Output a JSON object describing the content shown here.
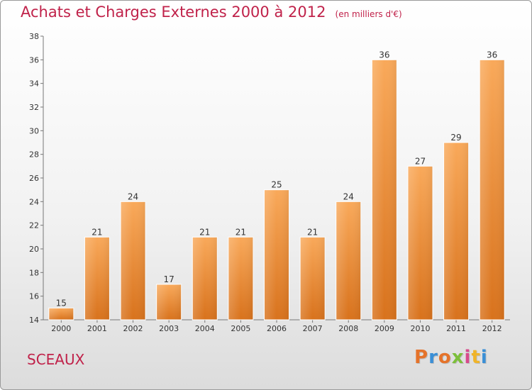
{
  "header": {
    "title": "Achats et Charges Externes 2000 à 2012",
    "subtitle": "(en milliers d'€)"
  },
  "footer": {
    "commune": "SCEAUX",
    "logo_text": "Proxiti",
    "logo_colors": [
      "#e5732a",
      "#3a8fd6",
      "#e5732a",
      "#7cbf3a",
      "#d84a8c",
      "#f0b429",
      "#3a8fd6"
    ]
  },
  "colors": {
    "bar_top": "#f9a95a",
    "bar_bottom": "#d8721c",
    "title": "#c0224a"
  },
  "chart_data": {
    "type": "bar",
    "categories": [
      "2000",
      "2001",
      "2002",
      "2003",
      "2004",
      "2005",
      "2006",
      "2007",
      "2008",
      "2009",
      "2010",
      "2011",
      "2012"
    ],
    "values": [
      15,
      21,
      24,
      17,
      21,
      21,
      25,
      21,
      24,
      36,
      27,
      29,
      36
    ],
    "title": "Achats et Charges Externes 2000 à 2012",
    "ylim": [
      14,
      38
    ],
    "yticks": [
      14,
      16,
      18,
      20,
      22,
      24,
      26,
      28,
      30,
      32,
      34,
      36,
      38
    ],
    "grid": false,
    "data_labels": true
  }
}
